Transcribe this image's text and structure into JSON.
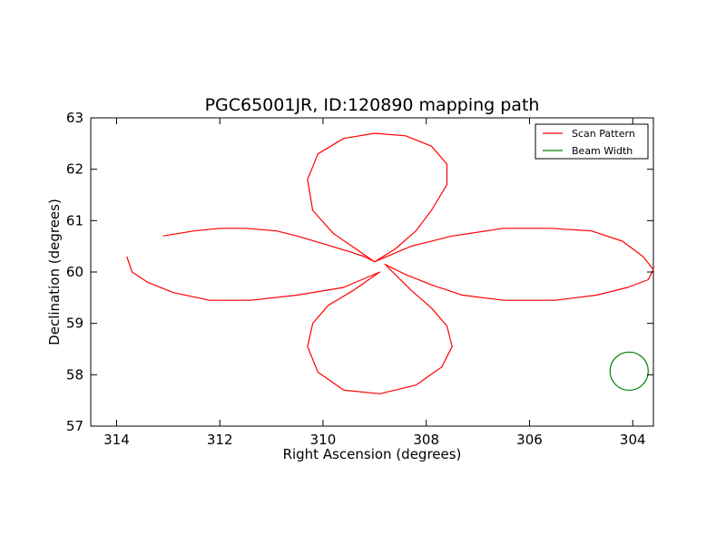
{
  "chart_data": {
    "type": "line",
    "title": "PGC65001JR, ID:120890 mapping path",
    "xlabel": "Right Ascension (degrees)",
    "ylabel": "Declination (degrees)",
    "xlim": [
      314.5,
      303.6
    ],
    "ylim": [
      57,
      63
    ],
    "x_ticks": [
      314,
      312,
      310,
      308,
      306,
      304
    ],
    "y_ticks": [
      57,
      58,
      59,
      60,
      61,
      62,
      63
    ],
    "grid": false,
    "legend_position": "top-right",
    "center": [
      308.8,
      60.15
    ],
    "series": [
      {
        "name": "Scan Pattern",
        "color": "#ff0000",
        "description_type": "rosette",
        "x": [
          313.1,
          312.5,
          312.0,
          311.5,
          310.9,
          310.5,
          310.0,
          309.5,
          309.2,
          309.0,
          309.8,
          310.2,
          310.3,
          310.1,
          309.6,
          309.0,
          308.4,
          307.9,
          307.6,
          307.6,
          307.9,
          308.2,
          308.6,
          309.0,
          308.3,
          307.5,
          306.5,
          305.6,
          304.8,
          304.2,
          303.8,
          303.6,
          303.7,
          304.1,
          304.7,
          305.5,
          306.5,
          307.3,
          307.9,
          308.4,
          308.8,
          308.3,
          307.9,
          307.6,
          307.5,
          307.7,
          308.2,
          308.9,
          309.6,
          310.1,
          310.3,
          310.2,
          309.9,
          309.4,
          308.9,
          309.6,
          310.5,
          311.4,
          312.2,
          312.9,
          313.4,
          313.7,
          313.8
        ],
        "y": [
          60.7,
          60.8,
          60.85,
          60.85,
          60.8,
          60.7,
          60.55,
          60.4,
          60.3,
          60.2,
          60.75,
          61.2,
          61.8,
          62.3,
          62.6,
          62.7,
          62.65,
          62.45,
          62.1,
          61.7,
          61.2,
          60.8,
          60.45,
          60.2,
          60.5,
          60.7,
          60.85,
          60.85,
          60.8,
          60.6,
          60.3,
          60.05,
          59.85,
          59.7,
          59.55,
          59.45,
          59.45,
          59.55,
          59.75,
          59.95,
          60.15,
          59.65,
          59.3,
          58.95,
          58.55,
          58.15,
          57.8,
          57.63,
          57.7,
          58.05,
          58.55,
          59.0,
          59.35,
          59.65,
          60.0,
          59.7,
          59.55,
          59.45,
          59.45,
          59.6,
          59.8,
          60.0,
          60.3
        ]
      },
      {
        "name": "Beam Width",
        "color": "#008000",
        "description_type": "circle",
        "center": [
          304.07,
          58.07
        ],
        "radius_deg": 0.37
      }
    ]
  }
}
